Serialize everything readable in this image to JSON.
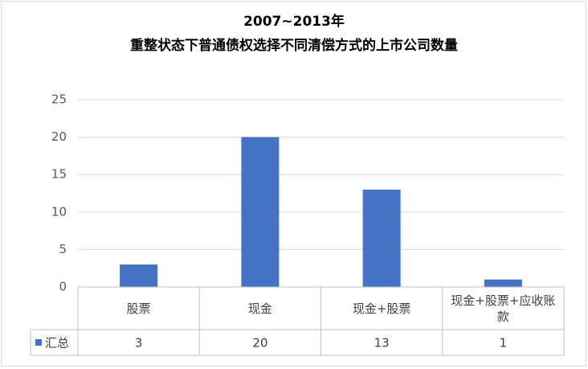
{
  "chart_data": {
    "type": "bar",
    "title": [
      "2007~2013年",
      "重整状态下普通债权选择不同清偿方式的上市公司数量"
    ],
    "categories": [
      "股票",
      "现金",
      "现金+股票",
      "现金+股票+应收账款"
    ],
    "series": [
      {
        "name": "汇总",
        "color": "#4472c4",
        "values": [
          3,
          20,
          13,
          1
        ]
      }
    ],
    "ylim": [
      0,
      25
    ],
    "yticks": [
      0,
      5,
      10,
      15,
      20,
      25
    ],
    "grid": true,
    "data_table": true
  }
}
